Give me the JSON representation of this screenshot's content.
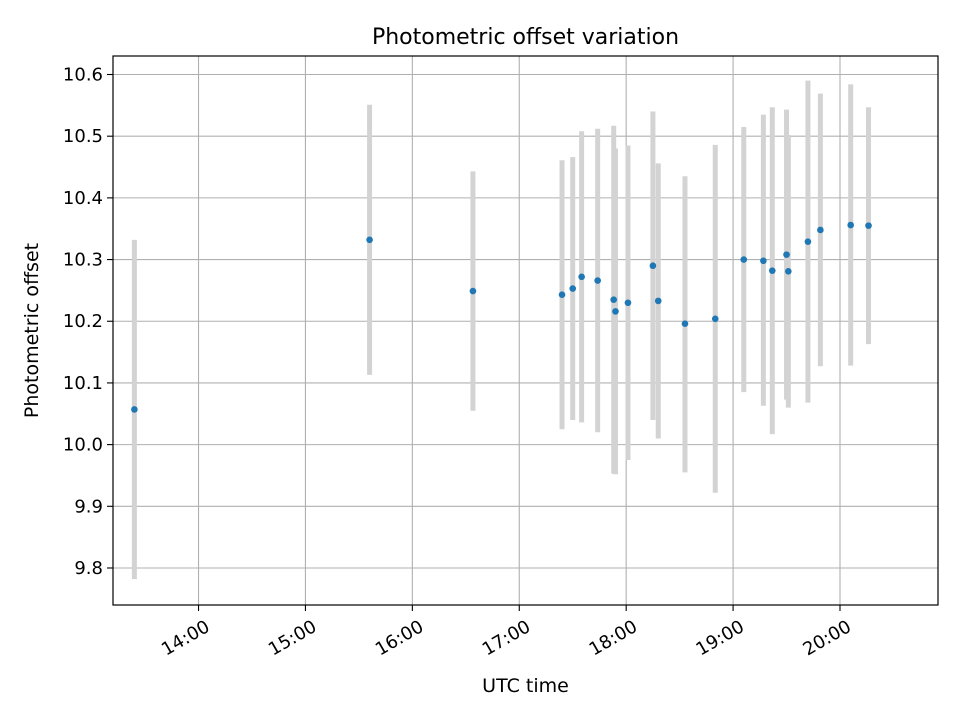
{
  "chart_data": {
    "type": "scatter",
    "title": "Photometric offset variation",
    "xlabel": "UTC time",
    "ylabel": "Photometric offset",
    "x_ticks": [
      "14:00",
      "15:00",
      "16:00",
      "17:00",
      "18:00",
      "19:00",
      "20:00"
    ],
    "y_ticks": [
      "9.8",
      "9.9",
      "10.0",
      "10.1",
      "10.2",
      "10.3",
      "10.4",
      "10.5",
      "10.6"
    ],
    "xlim": [
      "13:12",
      "20:55"
    ],
    "ylim": [
      9.74,
      10.63
    ],
    "grid": true,
    "point_color": "#1f77b4",
    "errorbar_color": "#d3d3d3",
    "series": [
      {
        "points": [
          {
            "t": "13:24",
            "y": 10.057,
            "lo": 9.782,
            "hi": 10.332
          },
          {
            "t": "15:36",
            "y": 10.332,
            "lo": 10.113,
            "hi": 10.551
          },
          {
            "t": "16:34",
            "y": 10.249,
            "lo": 10.055,
            "hi": 10.443
          },
          {
            "t": "17:24",
            "y": 10.243,
            "lo": 10.025,
            "hi": 10.461
          },
          {
            "t": "17:30",
            "y": 10.253,
            "lo": 10.04,
            "hi": 10.466
          },
          {
            "t": "17:35",
            "y": 10.272,
            "lo": 10.036,
            "hi": 10.508
          },
          {
            "t": "17:44",
            "y": 10.266,
            "lo": 10.02,
            "hi": 10.512
          },
          {
            "t": "17:53",
            "y": 10.235,
            "lo": 9.953,
            "hi": 10.517
          },
          {
            "t": "17:54",
            "y": 10.216,
            "lo": 9.952,
            "hi": 10.48
          },
          {
            "t": "18:01",
            "y": 10.23,
            "lo": 9.975,
            "hi": 10.485
          },
          {
            "t": "18:15",
            "y": 10.29,
            "lo": 10.04,
            "hi": 10.54
          },
          {
            "t": "18:18",
            "y": 10.233,
            "lo": 10.01,
            "hi": 10.456
          },
          {
            "t": "18:33",
            "y": 10.196,
            "lo": 9.955,
            "hi": 10.435
          },
          {
            "t": "18:50",
            "y": 10.204,
            "lo": 9.922,
            "hi": 10.486
          },
          {
            "t": "19:06",
            "y": 10.3,
            "lo": 10.085,
            "hi": 10.515
          },
          {
            "t": "19:17",
            "y": 10.298,
            "lo": 10.063,
            "hi": 10.535
          },
          {
            "t": "19:22",
            "y": 10.282,
            "lo": 10.017,
            "hi": 10.547
          },
          {
            "t": "19:30",
            "y": 10.308,
            "lo": 10.073,
            "hi": 10.543
          },
          {
            "t": "19:31",
            "y": 10.281,
            "lo": 10.06,
            "hi": 10.502
          },
          {
            "t": "19:42",
            "y": 10.329,
            "lo": 10.068,
            "hi": 10.59
          },
          {
            "t": "19:49",
            "y": 10.348,
            "lo": 10.127,
            "hi": 10.569
          },
          {
            "t": "20:06",
            "y": 10.356,
            "lo": 10.128,
            "hi": 10.584
          },
          {
            "t": "20:16",
            "y": 10.355,
            "lo": 10.163,
            "hi": 10.547
          }
        ]
      }
    ]
  }
}
